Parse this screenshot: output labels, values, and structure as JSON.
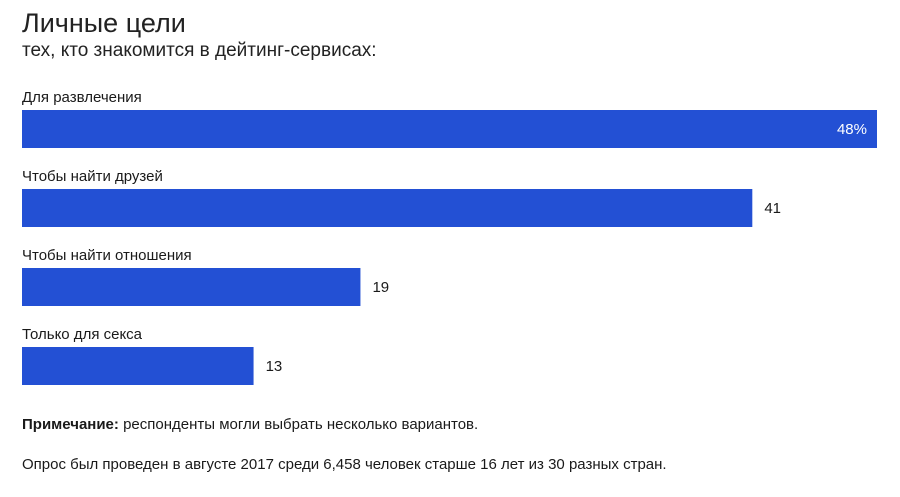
{
  "chart_data": {
    "type": "bar",
    "orientation": "horizontal",
    "title": "Личные цели",
    "subtitle": "тех, кто знакомится в дейтинг-сервисах:",
    "categories": [
      "Для развлечения",
      "Чтобы найти друзей",
      "Чтобы найти отношения",
      "Только для секса"
    ],
    "values": [
      48,
      41,
      19,
      13
    ],
    "data_labels": [
      "48%",
      "41",
      "19",
      "13"
    ],
    "unit": "%",
    "xlim": [
      0,
      48
    ],
    "grid": false,
    "bar_color": "#2350d4"
  },
  "note": {
    "label": "Примечание:",
    "text": " респонденты могли выбрать несколько вариантов."
  },
  "source": "Опрос был проведен в августе 2017 среди 6,458 человек старше 16 лет из 30 разных стран."
}
